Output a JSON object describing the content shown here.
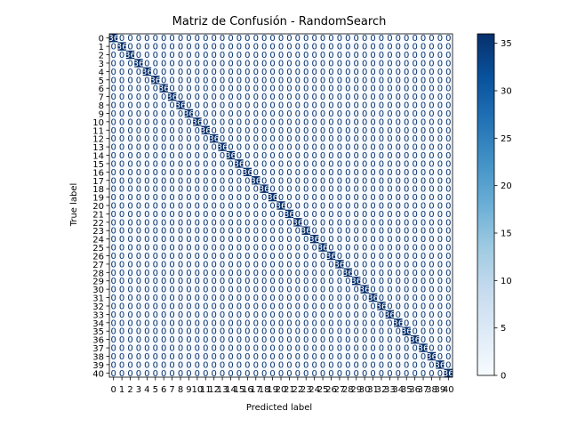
{
  "chart_data": {
    "type": "heatmap",
    "title": "Matriz de Confusión - RandomSearch",
    "xlabel": "Predicted label",
    "ylabel": "True label",
    "labels": [
      "0",
      "1",
      "2",
      "3",
      "4",
      "5",
      "6",
      "7",
      "8",
      "9",
      "10",
      "11",
      "12",
      "13",
      "14",
      "15",
      "16",
      "17",
      "18",
      "19",
      "20",
      "21",
      "22",
      "23",
      "24",
      "25",
      "26",
      "27",
      "28",
      "29",
      "30",
      "31",
      "32",
      "33",
      "34",
      "35",
      "36",
      "37",
      "38",
      "39",
      "40"
    ],
    "diagonal_value": 36,
    "off_diagonal_value": 0,
    "colormap": "Blues",
    "color_low": "#f7fbff",
    "color_high": "#08306b",
    "colorbar_ticks": [
      0,
      5,
      10,
      15,
      20,
      25,
      30,
      35
    ],
    "colorbar_range": [
      0,
      36
    ],
    "text_color_light": "#ffffff",
    "text_color_dark": "#08306b"
  }
}
